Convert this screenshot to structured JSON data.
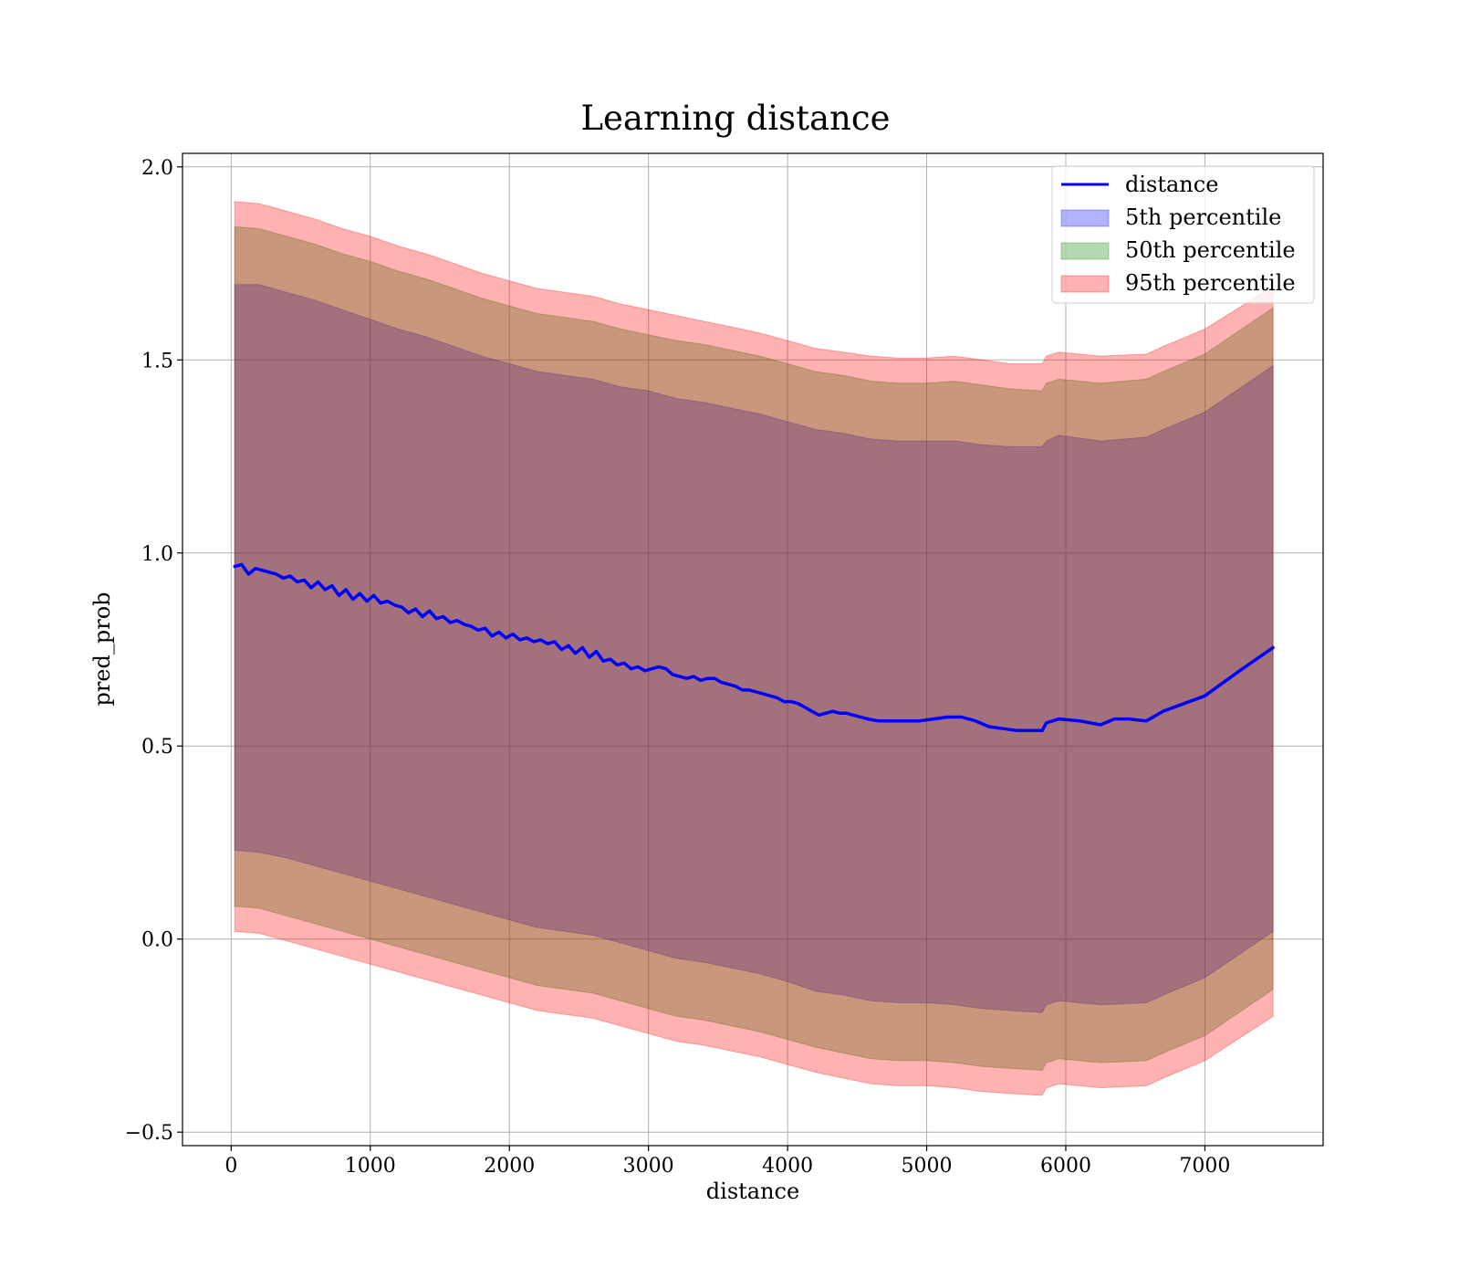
{
  "chart_data": {
    "type": "area",
    "title": "Learning distance",
    "xlabel": "distance",
    "ylabel": "pred_prob",
    "xlim": [
      -350,
      7850
    ],
    "ylim": [
      -0.535,
      2.035
    ],
    "xticks": [
      0,
      1000,
      2000,
      3000,
      4000,
      5000,
      6000,
      7000
    ],
    "xtick_labels": [
      "0",
      "1000",
      "2000",
      "3000",
      "4000",
      "5000",
      "6000",
      "7000"
    ],
    "yticks": [
      -0.5,
      0.0,
      0.5,
      1.0,
      1.5,
      2.0
    ],
    "ytick_labels": [
      "−0.5",
      "0.0",
      "0.5",
      "1.0",
      "1.5",
      "2.0"
    ],
    "grid": true,
    "legend_position": "top-right",
    "line": {
      "name": "distance",
      "color": "#0000ff",
      "x": [
        25,
        75,
        125,
        175,
        225,
        275,
        325,
        375,
        425,
        475,
        525,
        575,
        625,
        675,
        725,
        775,
        825,
        875,
        925,
        975,
        1025,
        1075,
        1125,
        1175,
        1225,
        1275,
        1325,
        1375,
        1425,
        1475,
        1525,
        1575,
        1625,
        1675,
        1725,
        1775,
        1825,
        1875,
        1925,
        1975,
        2025,
        2075,
        2125,
        2175,
        2225,
        2275,
        2325,
        2375,
        2425,
        2475,
        2525,
        2575,
        2625,
        2675,
        2725,
        2775,
        2825,
        2875,
        2925,
        2975,
        3025,
        3075,
        3125,
        3175,
        3225,
        3275,
        3325,
        3375,
        3425,
        3475,
        3525,
        3575,
        3625,
        3675,
        3725,
        3775,
        3825,
        3875,
        3925,
        3975,
        4025,
        4075,
        4125,
        4175,
        4225,
        4275,
        4325,
        4375,
        4425,
        4475,
        4525,
        4575,
        4650,
        4750,
        4850,
        4950,
        5050,
        5150,
        5250,
        5350,
        5450,
        5550,
        5650,
        5750,
        5830,
        5860,
        5950,
        6100,
        6250,
        6350,
        6450,
        6580,
        6700,
        6850,
        7000,
        7250,
        7490
      ],
      "y": [
        0.965,
        0.97,
        0.945,
        0.96,
        0.955,
        0.95,
        0.945,
        0.935,
        0.94,
        0.925,
        0.93,
        0.91,
        0.925,
        0.905,
        0.915,
        0.89,
        0.905,
        0.88,
        0.895,
        0.875,
        0.89,
        0.87,
        0.875,
        0.865,
        0.86,
        0.845,
        0.855,
        0.835,
        0.85,
        0.83,
        0.835,
        0.82,
        0.825,
        0.815,
        0.81,
        0.8,
        0.805,
        0.785,
        0.795,
        0.78,
        0.79,
        0.775,
        0.78,
        0.77,
        0.775,
        0.765,
        0.77,
        0.75,
        0.76,
        0.74,
        0.755,
        0.73,
        0.745,
        0.72,
        0.725,
        0.71,
        0.715,
        0.7,
        0.705,
        0.695,
        0.7,
        0.705,
        0.7,
        0.685,
        0.68,
        0.675,
        0.68,
        0.67,
        0.675,
        0.675,
        0.665,
        0.66,
        0.655,
        0.645,
        0.645,
        0.64,
        0.635,
        0.63,
        0.625,
        0.615,
        0.615,
        0.61,
        0.6,
        0.59,
        0.58,
        0.585,
        0.59,
        0.585,
        0.585,
        0.58,
        0.575,
        0.57,
        0.565,
        0.565,
        0.565,
        0.565,
        0.57,
        0.575,
        0.575,
        0.565,
        0.55,
        0.545,
        0.54,
        0.54,
        0.54,
        0.56,
        0.57,
        0.565,
        0.555,
        0.57,
        0.57,
        0.565,
        0.59,
        0.61,
        0.63,
        0.695,
        0.755
      ]
    },
    "series": [
      {
        "name": "5th percentile",
        "color": "#0000ff",
        "x": [
          25,
          200,
          400,
          600,
          800,
          1000,
          1200,
          1400,
          1600,
          1800,
          2000,
          2200,
          2400,
          2600,
          2800,
          3000,
          3200,
          3400,
          3600,
          3800,
          4000,
          4200,
          4400,
          4600,
          4800,
          5000,
          5200,
          5400,
          5600,
          5830,
          5860,
          5950,
          6250,
          6580,
          6700,
          7000,
          7490
        ],
        "upper": [
          1.695,
          1.695,
          1.675,
          1.655,
          1.63,
          1.605,
          1.58,
          1.56,
          1.535,
          1.51,
          1.49,
          1.47,
          1.46,
          1.45,
          1.43,
          1.42,
          1.4,
          1.39,
          1.375,
          1.36,
          1.34,
          1.32,
          1.31,
          1.295,
          1.29,
          1.29,
          1.29,
          1.28,
          1.275,
          1.275,
          1.29,
          1.305,
          1.29,
          1.3,
          1.32,
          1.365,
          1.485
        ],
        "lower": [
          0.23,
          0.225,
          0.21,
          0.19,
          0.17,
          0.15,
          0.13,
          0.11,
          0.09,
          0.07,
          0.05,
          0.03,
          0.02,
          0.01,
          -0.01,
          -0.03,
          -0.05,
          -0.06,
          -0.075,
          -0.09,
          -0.11,
          -0.135,
          -0.145,
          -0.16,
          -0.165,
          -0.165,
          -0.17,
          -0.18,
          -0.185,
          -0.19,
          -0.17,
          -0.16,
          -0.17,
          -0.165,
          -0.145,
          -0.1,
          0.02
        ]
      },
      {
        "name": "50th percentile",
        "color": "#008000",
        "x": [
          25,
          200,
          400,
          600,
          800,
          1000,
          1200,
          1400,
          1600,
          1800,
          2000,
          2200,
          2400,
          2600,
          2800,
          3000,
          3200,
          3400,
          3600,
          3800,
          4000,
          4200,
          4400,
          4600,
          4800,
          5000,
          5200,
          5400,
          5600,
          5830,
          5860,
          5950,
          6250,
          6580,
          6700,
          7000,
          7490
        ],
        "upper": [
          1.845,
          1.84,
          1.82,
          1.8,
          1.775,
          1.755,
          1.73,
          1.71,
          1.685,
          1.66,
          1.64,
          1.62,
          1.61,
          1.6,
          1.58,
          1.565,
          1.55,
          1.54,
          1.525,
          1.51,
          1.49,
          1.47,
          1.46,
          1.445,
          1.44,
          1.44,
          1.445,
          1.435,
          1.425,
          1.42,
          1.44,
          1.45,
          1.44,
          1.45,
          1.47,
          1.515,
          1.635
        ],
        "lower": [
          0.085,
          0.08,
          0.06,
          0.04,
          0.02,
          0.0,
          -0.02,
          -0.04,
          -0.06,
          -0.08,
          -0.1,
          -0.12,
          -0.13,
          -0.14,
          -0.16,
          -0.18,
          -0.2,
          -0.21,
          -0.225,
          -0.24,
          -0.26,
          -0.28,
          -0.295,
          -0.31,
          -0.315,
          -0.315,
          -0.32,
          -0.33,
          -0.335,
          -0.34,
          -0.32,
          -0.31,
          -0.32,
          -0.315,
          -0.295,
          -0.25,
          -0.13
        ]
      },
      {
        "name": "95th percentile",
        "color": "#ff0000",
        "x": [
          25,
          200,
          400,
          600,
          800,
          1000,
          1200,
          1400,
          1600,
          1800,
          2000,
          2200,
          2400,
          2600,
          2800,
          3000,
          3200,
          3400,
          3600,
          3800,
          4000,
          4200,
          4400,
          4600,
          4800,
          5000,
          5200,
          5400,
          5600,
          5830,
          5860,
          5950,
          6250,
          6580,
          6700,
          7000,
          7490
        ],
        "upper": [
          1.91,
          1.905,
          1.885,
          1.865,
          1.84,
          1.82,
          1.795,
          1.775,
          1.75,
          1.725,
          1.705,
          1.685,
          1.675,
          1.665,
          1.645,
          1.63,
          1.615,
          1.6,
          1.585,
          1.57,
          1.55,
          1.53,
          1.52,
          1.51,
          1.505,
          1.505,
          1.51,
          1.5,
          1.49,
          1.49,
          1.51,
          1.52,
          1.51,
          1.515,
          1.535,
          1.58,
          1.69
        ],
        "lower": [
          0.02,
          0.015,
          -0.005,
          -0.025,
          -0.045,
          -0.065,
          -0.085,
          -0.105,
          -0.125,
          -0.145,
          -0.165,
          -0.185,
          -0.195,
          -0.205,
          -0.225,
          -0.245,
          -0.265,
          -0.275,
          -0.29,
          -0.305,
          -0.325,
          -0.345,
          -0.36,
          -0.375,
          -0.38,
          -0.38,
          -0.385,
          -0.395,
          -0.4,
          -0.405,
          -0.385,
          -0.375,
          -0.385,
          -0.38,
          -0.36,
          -0.315,
          -0.2
        ]
      }
    ]
  }
}
